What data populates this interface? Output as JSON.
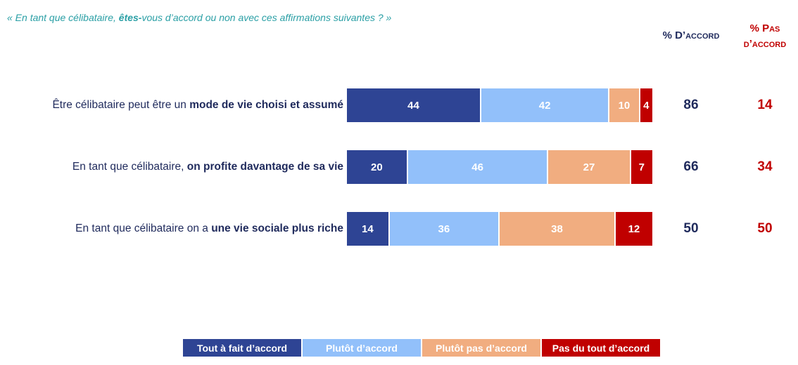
{
  "question": {
    "part1": "« En tant que célibataire, ",
    "part2": "êtes-",
    "part3": "vous d’accord ou non avec ces affirmations suivantes ? »"
  },
  "columns": {
    "agree": "% D’accord",
    "disagree_line1": "% Pas",
    "disagree_line2": "d’accord"
  },
  "colors": {
    "tout_a_fait": "#2e4494",
    "plutot": "#92c0fa",
    "plutot_pas": "#f1ad80",
    "pas_du_tout": "#c00000"
  },
  "chart_data": {
    "type": "bar",
    "orientation": "horizontal",
    "stacked": true,
    "categories": [
      "Être célibataire peut être un mode de vie choisi et assumé",
      "En tant que célibataire, on profite davantage de sa vie",
      "En tant que célibataire on a une vie sociale plus riche"
    ],
    "series": [
      {
        "name": "Tout à fait d’accord",
        "values": [
          44,
          20,
          14
        ]
      },
      {
        "name": "Plutôt d’accord",
        "values": [
          42,
          46,
          36
        ]
      },
      {
        "name": "Plutôt pas d’accord",
        "values": [
          10,
          27,
          38
        ]
      },
      {
        "name": "Pas du tout d’accord",
        "values": [
          4,
          7,
          12
        ]
      }
    ],
    "totals_agree": [
      86,
      66,
      50
    ],
    "totals_disagree": [
      14,
      34,
      50
    ],
    "legend_position": "bottom",
    "grid": false
  },
  "rows": [
    {
      "label_plain": "Être célibataire peut être un ",
      "label_bold": "mode de vie choisi et assumé"
    },
    {
      "label_plain": "En tant que célibataire, ",
      "label_bold": "on profite davantage de sa vie"
    },
    {
      "label_plain": "En tant que célibataire on a ",
      "label_bold": "une vie sociale plus riche"
    }
  ]
}
